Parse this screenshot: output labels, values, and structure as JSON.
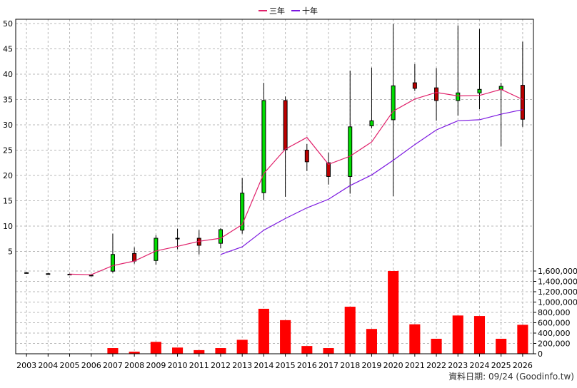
{
  "chart_data": {
    "type": "candlestick",
    "categories": [
      "2003",
      "2004",
      "2005",
      "2006",
      "2007",
      "2008",
      "2009",
      "2010",
      "2011",
      "2012",
      "2013",
      "2014",
      "2015",
      "2016",
      "2017",
      "2018",
      "2019",
      "2020",
      "2021",
      "2022",
      "2023",
      "2024",
      "2025",
      "2026"
    ],
    "price_axis": {
      "ylim": [
        0,
        50
      ],
      "ticks": [
        5,
        10,
        15,
        20,
        25,
        30,
        35,
        40,
        45,
        50
      ]
    },
    "volume_axis": {
      "ylim": [
        0,
        1600000
      ],
      "ticks": [
        "0",
        "200,000",
        "400,000",
        "600,000",
        "800,000",
        "1,000,000",
        "1,200,000",
        "1,400,000",
        "1,600,000"
      ],
      "tick_values": [
        0,
        200000,
        400000,
        600000,
        800000,
        1000000,
        1200000,
        1400000,
        1600000
      ]
    },
    "candles": [
      {
        "open": 0.8,
        "close": 0.8,
        "high": 0.9,
        "low": 0.7
      },
      {
        "open": 0.6,
        "close": 0.6,
        "high": 0.7,
        "low": 0.5
      },
      {
        "open": 0.5,
        "close": 0.5,
        "high": 0.6,
        "low": 0.4
      },
      {
        "open": 0.3,
        "close": 0.3,
        "high": 0.4,
        "low": 0.2
      },
      {
        "open": 1.1,
        "close": 4.4,
        "high": 8.5,
        "low": 0.8
      },
      {
        "open": 4.6,
        "close": 3.1,
        "high": 5.8,
        "low": 2.6
      },
      {
        "open": 3.2,
        "close": 7.6,
        "high": 8.2,
        "low": 2.4
      },
      {
        "open": 7.6,
        "close": 7.6,
        "high": 9.5,
        "low": 5.4
      },
      {
        "open": 7.6,
        "close": 6.2,
        "high": 9.2,
        "low": 4.4
      },
      {
        "open": 6.6,
        "close": 9.3,
        "high": 9.6,
        "low": 5.6
      },
      {
        "open": 9.2,
        "close": 16.5,
        "high": 19.5,
        "low": 8.5
      },
      {
        "open": 16.6,
        "close": 34.8,
        "high": 38.3,
        "low": 15.2
      },
      {
        "open": 34.8,
        "close": 25.1,
        "high": 35.6,
        "low": 15.8
      },
      {
        "open": 25.0,
        "close": 22.7,
        "high": 26.2,
        "low": 20.9
      },
      {
        "open": 22.5,
        "close": 19.8,
        "high": 24.5,
        "low": 18.2
      },
      {
        "open": 19.8,
        "close": 29.6,
        "high": 40.7,
        "low": 16.4
      },
      {
        "open": 29.8,
        "close": 30.8,
        "high": 41.3,
        "low": 29.3
      },
      {
        "open": 31.0,
        "close": 37.7,
        "high": 49.9,
        "low": 15.9
      },
      {
        "open": 38.3,
        "close": 37.2,
        "high": 42.0,
        "low": 36.7
      },
      {
        "open": 37.3,
        "close": 34.8,
        "high": 41.2,
        "low": 30.8
      },
      {
        "open": 34.8,
        "close": 36.3,
        "high": 49.6,
        "low": 31.8
      },
      {
        "open": 36.3,
        "close": 37.0,
        "high": 48.9,
        "low": 33.1
      },
      {
        "open": 37.0,
        "close": 37.6,
        "high": 38.3,
        "low": 25.7
      },
      {
        "open": 37.8,
        "close": 31.1,
        "high": 46.4,
        "low": 29.6
      }
    ],
    "series": [
      {
        "name": "三年",
        "color": "#e0206a",
        "values": [
          null,
          null,
          0.5,
          0.4,
          2.2,
          3.1,
          5.1,
          6.0,
          7.0,
          7.6,
          10.3,
          20.4,
          25.2,
          27.5,
          22.2,
          23.8,
          26.6,
          32.7,
          35.1,
          36.4,
          35.7,
          35.8,
          37.0,
          35.0
        ]
      },
      {
        "name": "十年",
        "color": "#7b17e0",
        "values": [
          null,
          null,
          null,
          null,
          null,
          null,
          null,
          null,
          null,
          4.4,
          5.9,
          9.2,
          11.5,
          13.6,
          15.3,
          18.0,
          20.1,
          23.0,
          26.1,
          29.0,
          30.8,
          31.0,
          32.1,
          33.0
        ]
      }
    ],
    "volumes": [
      0,
      0,
      0,
      0,
      110000,
      40000,
      230000,
      120000,
      70000,
      110000,
      270000,
      870000,
      650000,
      150000,
      110000,
      910000,
      480000,
      1600000,
      570000,
      290000,
      740000,
      730000,
      290000,
      560000
    ],
    "colors": {
      "up": "#00dd00",
      "down": "#bb0000",
      "volume": "#ff0000"
    }
  },
  "legend": {
    "item1": "三年",
    "item2": "十年"
  },
  "source_text": "資料日期: 09/24  (Goodinfo.tw)"
}
